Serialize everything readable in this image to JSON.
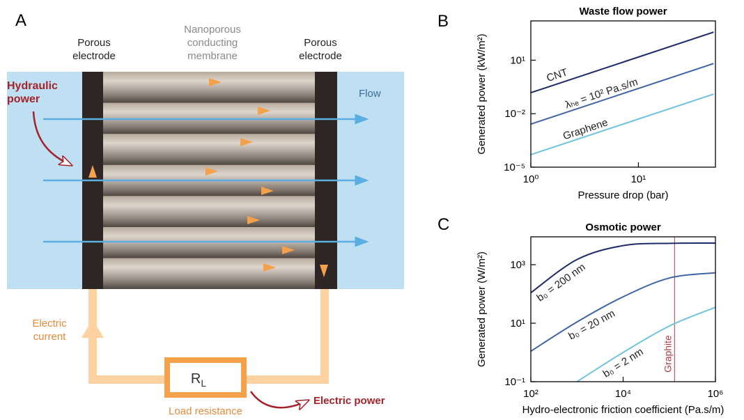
{
  "diagram": {
    "label": "A",
    "left_electrode": "Porous electrode",
    "membrane": "Nanoporous conducting membrane",
    "right_electrode": "Porous electrode",
    "hydraulic": "Hydraulic power",
    "flow": "Flow",
    "current": "Electric current",
    "load_symbol": "R",
    "load_subscript": "L",
    "load": "Load resistance",
    "electric_power": "Electric power"
  },
  "chart_data": [
    {
      "panel": "B",
      "type": "line",
      "title": "Waste flow power",
      "xlabel": "Pressure drop (bar)",
      "ylabel": "Generated power (kW/m²)",
      "xlog": true,
      "ylog": true,
      "x": [
        1,
        50
      ],
      "series": [
        {
          "name": "CNT",
          "color": "#1f2a6b",
          "values": [
            0.15,
            375
          ]
        },
        {
          "name": "λₕₑ = 10² Pa.s/m",
          "color": "#3d64a8",
          "values": [
            0.0026,
            6.5
          ]
        },
        {
          "name": "Graphene",
          "color": "#6fc3df",
          "values": [
            5e-05,
            0.125
          ]
        }
      ],
      "xlim": [
        1,
        52
      ],
      "ylim": [
        1e-05,
        1600
      ],
      "xticks": [
        {
          "value": 1,
          "label": "10⁰"
        },
        {
          "value": 10,
          "label": "10¹"
        }
      ],
      "yticks": [
        {
          "value": 1e-05,
          "label": "10⁻⁵"
        },
        {
          "value": 0.01,
          "label": "10⁻²"
        },
        {
          "value": 10,
          "label": "10¹"
        }
      ]
    },
    {
      "panel": "C",
      "type": "line",
      "title": "Osmotic power",
      "xlabel": "Hydro-electronic friction coefficient (Pa.s/m)",
      "ylabel": "Generated power (W/m²)",
      "xlog": true,
      "ylog": true,
      "x": [
        100,
        1000,
        10000,
        100000,
        1000000
      ],
      "series": [
        {
          "name": "b₀ = 200 nm",
          "color": "#1f2a6b",
          "values": [
            110,
            1500,
            4500,
            5400,
            5500
          ]
        },
        {
          "name": "b₀ = 20 nm",
          "color": "#3d64a8",
          "values": [
            1.1,
            11,
            80,
            350,
            530
          ]
        },
        {
          "name": "b₀ = 2 nm",
          "color": "#6fc3df",
          "values": [
            null,
            0.1,
            1,
            8,
            35
          ]
        }
      ],
      "annotation": {
        "x": 130000,
        "label": "Graphite",
        "color": "#b03a48"
      },
      "xlim": [
        100,
        1000000
      ],
      "ylim": [
        0.1,
        9000
      ],
      "xticks": [
        {
          "value": 100,
          "label": "10²"
        },
        {
          "value": 10000,
          "label": "10⁴"
        },
        {
          "value": 1000000,
          "label": "10⁶"
        }
      ],
      "yticks": [
        {
          "value": 0.1,
          "label": "10⁻¹"
        },
        {
          "value": 10,
          "label": "10¹"
        },
        {
          "value": 1000,
          "label": "10³"
        }
      ]
    }
  ]
}
